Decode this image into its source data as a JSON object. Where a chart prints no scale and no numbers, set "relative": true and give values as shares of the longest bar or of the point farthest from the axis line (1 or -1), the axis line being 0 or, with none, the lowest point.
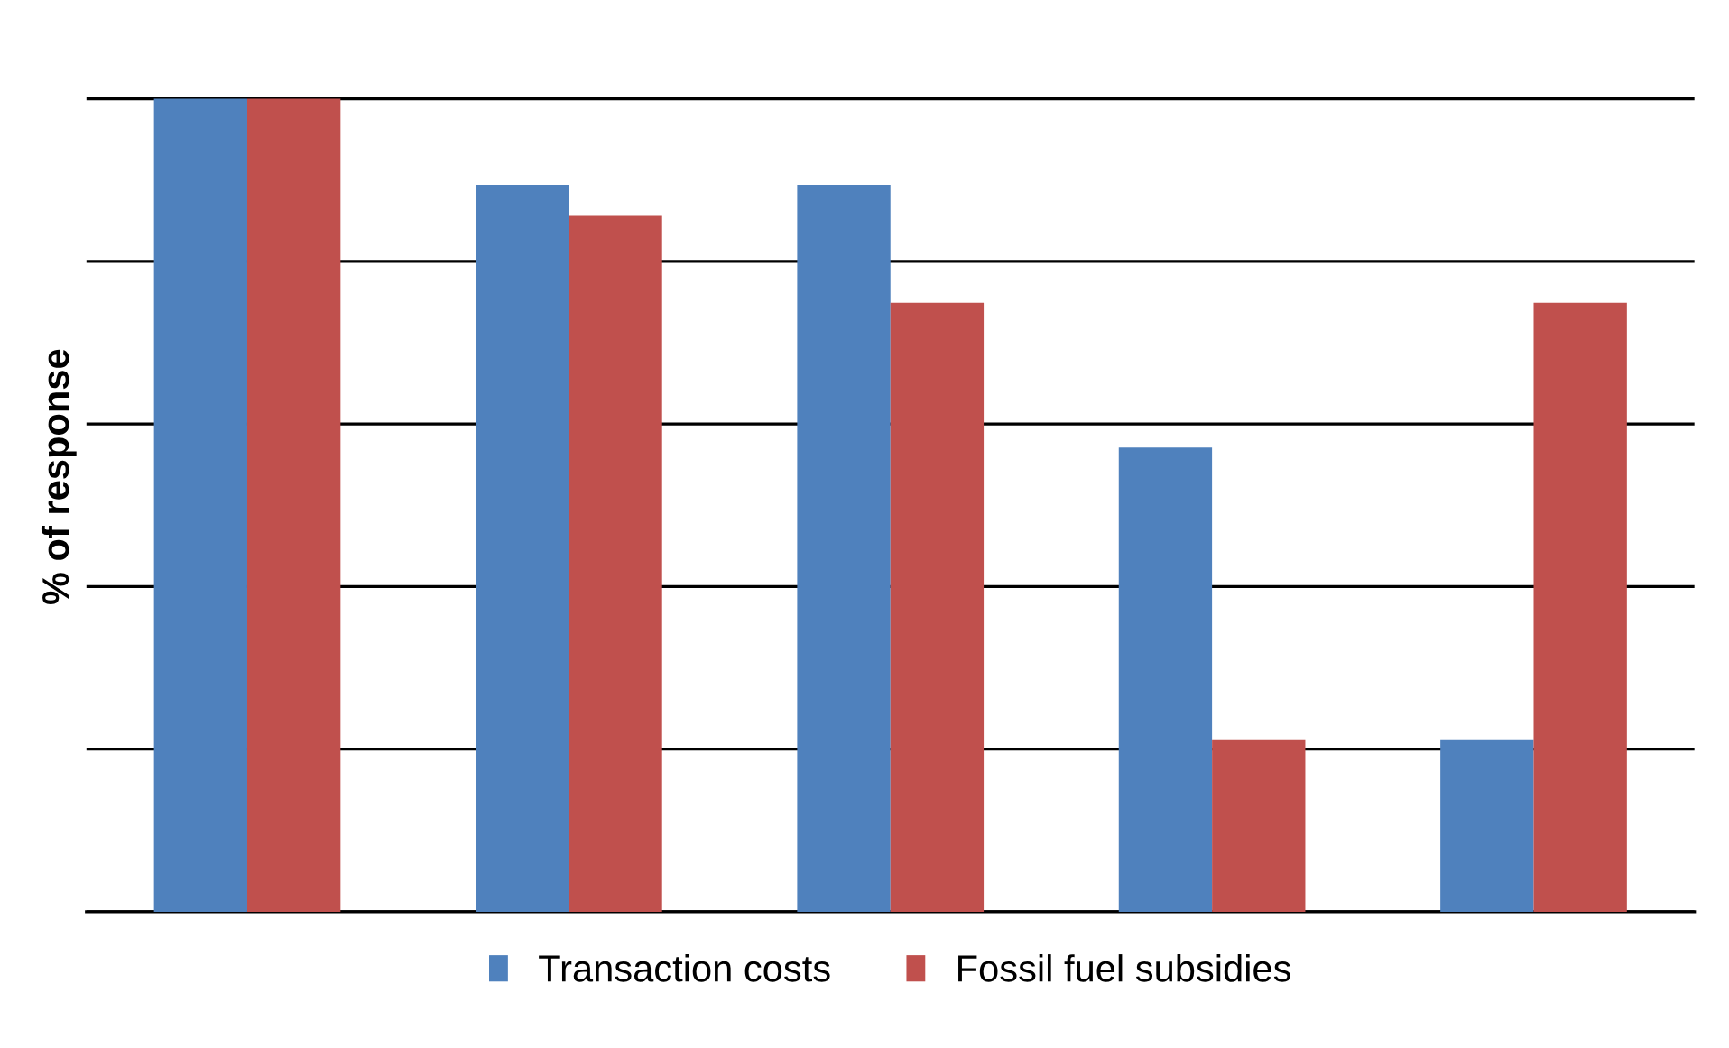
{
  "chart_data": {
    "type": "bar",
    "ylabel": "% of response",
    "relative": true,
    "categories": [
      null,
      null,
      null,
      null,
      null
    ],
    "series": [
      {
        "name": "Transaction costs",
        "color": "#4f81bd",
        "values": [
          1,
          0.894,
          0.894,
          0.571,
          0.212
        ]
      },
      {
        "name": "Fossil fuel subsidies",
        "color": "#c0504d",
        "values": [
          1,
          0.857,
          0.749,
          0.212,
          0.749
        ]
      }
    ],
    "grid": "y",
    "legend": "bottom",
    "tick_labels": false
  }
}
